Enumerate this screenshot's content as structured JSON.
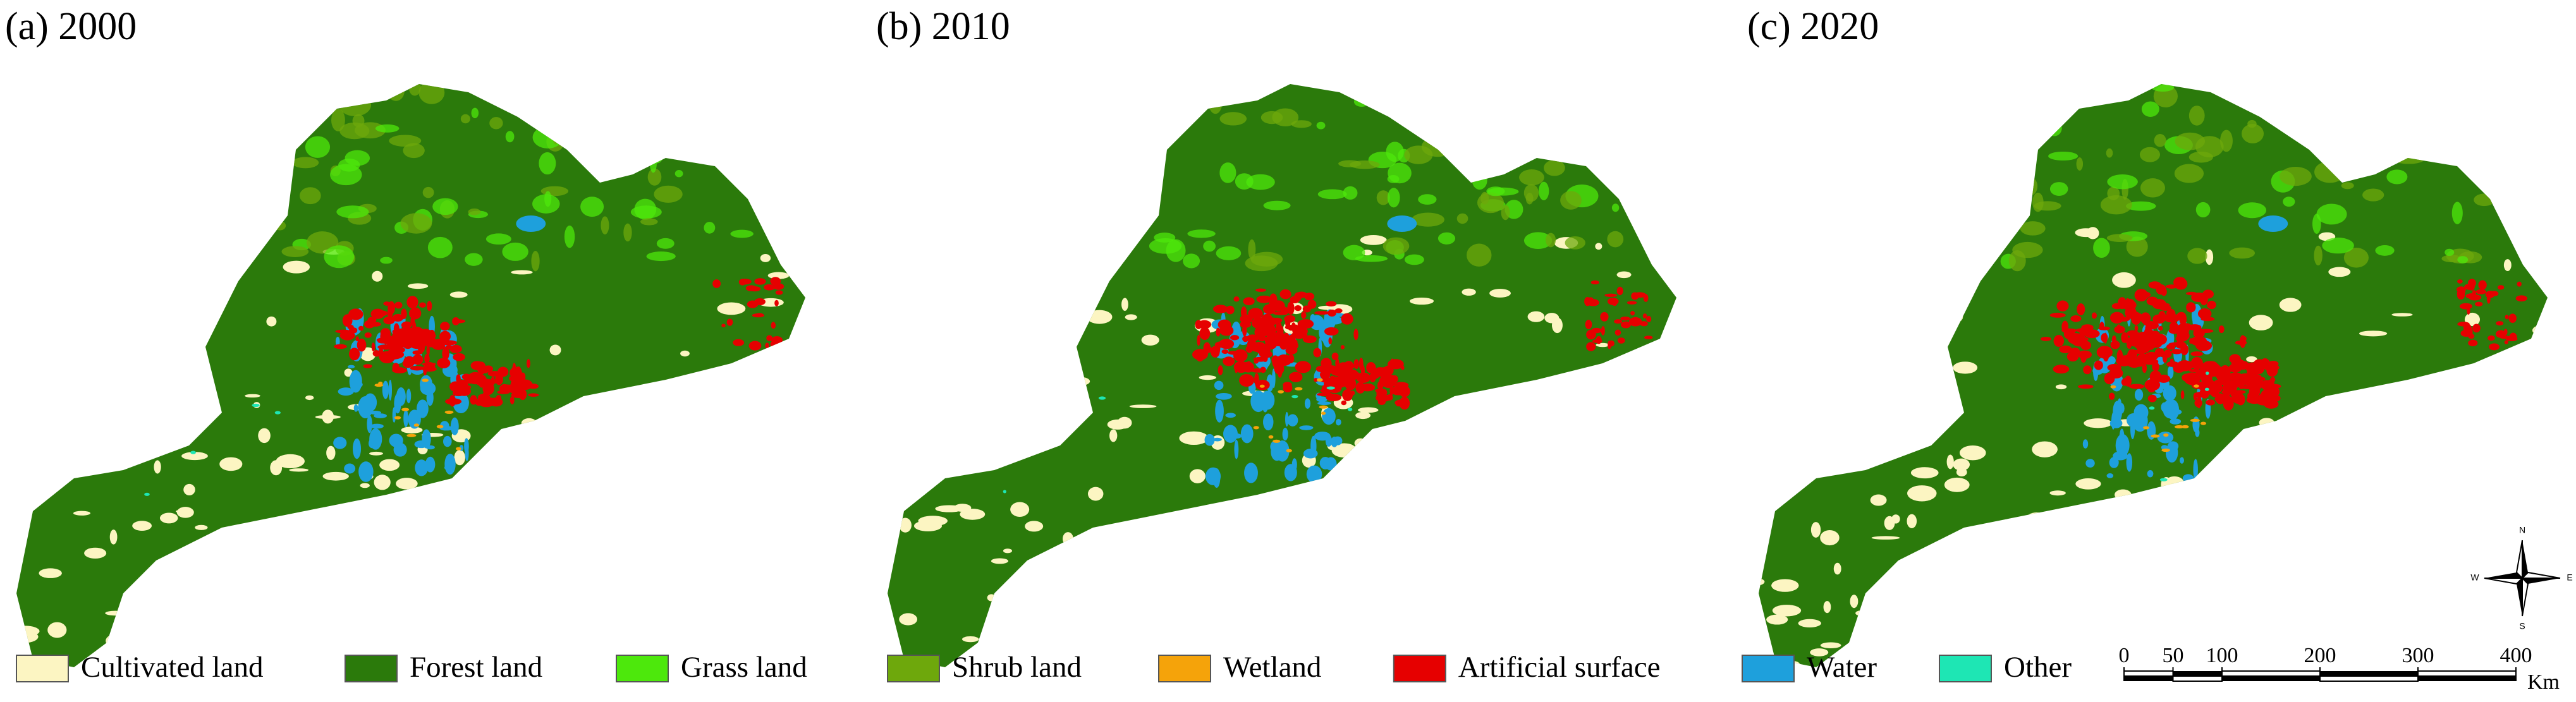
{
  "panels": [
    {
      "title": "(a) 2000"
    },
    {
      "title": "(b) 2010"
    },
    {
      "title": "(c) 2020"
    }
  ],
  "legend": [
    {
      "label": "Cultivated land",
      "color": "#fcf5c2"
    },
    {
      "label": "Forest land",
      "color": "#2b7a0b"
    },
    {
      "label": "Grass land",
      "color": "#4de80c"
    },
    {
      "label": "Shrub land",
      "color": "#6ea80c"
    },
    {
      "label": "Wetland",
      "color": "#f5a30a"
    },
    {
      "label": "Artificial surface",
      "color": "#e60000"
    },
    {
      "label": "Water",
      "color": "#1ea0dc"
    },
    {
      "label": "Other",
      "color": "#1ee6b4"
    }
  ],
  "scale_bar": {
    "ticks": [
      0,
      50,
      100,
      200,
      300,
      400
    ],
    "unit": "Km"
  },
  "compass": {
    "north": "N",
    "south": "S",
    "east": "E",
    "west": "W"
  }
}
